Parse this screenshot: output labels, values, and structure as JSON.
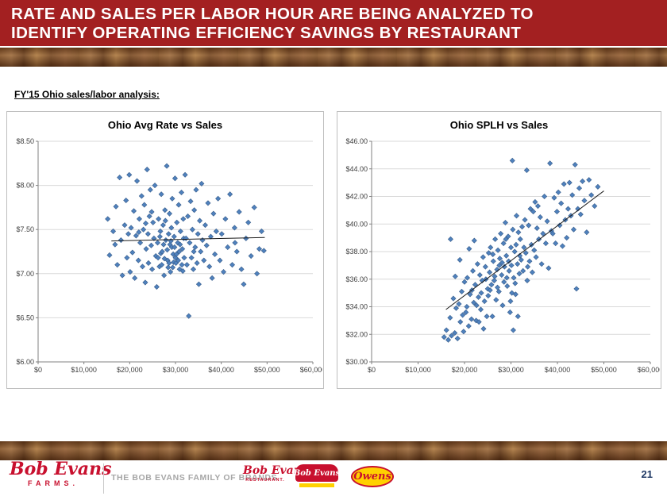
{
  "header": {
    "line1": "RATE AND SALES PER LABOR HOUR ARE BEING ANALYZED TO",
    "line2": "IDENTIFY OPERATING EFFICIENCY SAVINGS BY RESTAURANT"
  },
  "section_label": "FY'15 Ohio sales/labor analysis:",
  "colors": {
    "header_red": "#A32021",
    "brand_red": "#C8102E",
    "marker_blue": "#4F81BD",
    "marker_blue_stroke": "#385D8A",
    "gridline_gray": "#d9d9d9",
    "axis_gray": "#808080",
    "page_number_navy": "#1F3864"
  },
  "chart_data": [
    {
      "type": "scatter",
      "title": "Ohio Avg Rate vs Sales",
      "xlim": [
        0,
        60000
      ],
      "ylim": [
        6.0,
        8.5
      ],
      "x_ticks": [
        0,
        10000,
        20000,
        30000,
        40000,
        50000,
        60000
      ],
      "x_tick_labels": [
        "$0",
        "$10,000",
        "$20,000",
        "$30,000",
        "$40,000",
        "$50,000",
        "$60,000"
      ],
      "y_ticks": [
        6.0,
        6.5,
        7.0,
        7.5,
        8.0,
        8.5
      ],
      "y_tick_labels": [
        "$6.00",
        "$6.50",
        "$7.00",
        "$7.50",
        "$8.00",
        "$8.50"
      ],
      "marker_color": "#4F81BD",
      "marker_stroke": "#385D8A",
      "trendline": {
        "x1": 16000,
        "y1": 7.37,
        "x2": 49500,
        "y2": 7.41
      },
      "points": [
        [
          15200,
          7.62
        ],
        [
          15600,
          7.21
        ],
        [
          16400,
          7.48
        ],
        [
          16800,
          7.33
        ],
        [
          17000,
          7.76
        ],
        [
          17300,
          7.1
        ],
        [
          17800,
          8.09
        ],
        [
          18100,
          7.38
        ],
        [
          18400,
          6.98
        ],
        [
          18900,
          7.55
        ],
        [
          19200,
          7.83
        ],
        [
          19400,
          7.18
        ],
        [
          19700,
          7.45
        ],
        [
          19900,
          8.12
        ],
        [
          20100,
          7.02
        ],
        [
          20300,
          7.52
        ],
        [
          20600,
          7.24
        ],
        [
          20900,
          7.71
        ],
        [
          21100,
          6.95
        ],
        [
          21400,
          7.43
        ],
        [
          21600,
          8.05
        ],
        [
          21900,
          7.15
        ],
        [
          22000,
          7.47
        ],
        [
          22100,
          7.62
        ],
        [
          22300,
          7.35
        ],
        [
          22600,
          7.88
        ],
        [
          22800,
          7.08
        ],
        [
          23000,
          7.5
        ],
        [
          23200,
          7.78
        ],
        [
          23400,
          6.9
        ],
        [
          23500,
          7.57
        ],
        [
          23600,
          7.28
        ],
        [
          23800,
          8.18
        ],
        [
          24000,
          7.45
        ],
        [
          24100,
          7.12
        ],
        [
          24300,
          7.65
        ],
        [
          24500,
          7.95
        ],
        [
          24700,
          7.32
        ],
        [
          24800,
          7.7
        ],
        [
          24900,
          7.05
        ],
        [
          25100,
          7.58
        ],
        [
          25300,
          7.4
        ],
        [
          25500,
          8.0
        ],
        [
          25700,
          7.2
        ],
        [
          25900,
          6.85
        ],
        [
          26100,
          7.35
        ],
        [
          26200,
          7.18
        ],
        [
          26300,
          7.62
        ],
        [
          26500,
          7.08
        ],
        [
          26600,
          7.42
        ],
        [
          26700,
          7.48
        ],
        [
          26800,
          7.23
        ],
        [
          26900,
          7.9
        ],
        [
          27000,
          7.1
        ],
        [
          27100,
          7.25
        ],
        [
          27300,
          7.55
        ],
        [
          27400,
          7.33
        ],
        [
          27500,
          6.98
        ],
        [
          27600,
          7.17
        ],
        [
          27700,
          7.72
        ],
        [
          27800,
          7.6
        ],
        [
          27900,
          7.38
        ],
        [
          28100,
          8.22
        ],
        [
          28200,
          7.27
        ],
        [
          28300,
          7.15
        ],
        [
          28400,
          7.07
        ],
        [
          28500,
          7.45
        ],
        [
          28600,
          7.12
        ],
        [
          28700,
          7.68
        ],
        [
          28800,
          7.33
        ],
        [
          28900,
          7.02
        ],
        [
          29000,
          7.37
        ],
        [
          29100,
          7.52
        ],
        [
          29200,
          7.3
        ],
        [
          29300,
          7.85
        ],
        [
          29400,
          7.07
        ],
        [
          29500,
          7.22
        ],
        [
          29600,
          7.13
        ],
        [
          29700,
          7.42
        ],
        [
          29800,
          7.3
        ],
        [
          29900,
          8.08
        ],
        [
          30000,
          7.18
        ],
        [
          30100,
          7.12
        ],
        [
          30200,
          7.22
        ],
        [
          30300,
          7.58
        ],
        [
          30500,
          7.35
        ],
        [
          30600,
          7.15
        ],
        [
          30700,
          7.78
        ],
        [
          30800,
          7.25
        ],
        [
          30900,
          7.05
        ],
        [
          31000,
          7.33
        ],
        [
          31100,
          7.48
        ],
        [
          31300,
          7.92
        ],
        [
          31400,
          7.1
        ],
        [
          31500,
          7.28
        ],
        [
          31600,
          7.03
        ],
        [
          31700,
          7.62
        ],
        [
          31800,
          7.4
        ],
        [
          31900,
          7.18
        ],
        [
          32100,
          8.12
        ],
        [
          32300,
          7.4
        ],
        [
          32500,
          7.1
        ],
        [
          32700,
          7.65
        ],
        [
          32900,
          6.52
        ],
        [
          33100,
          7.35
        ],
        [
          33300,
          7.82
        ],
        [
          33500,
          7.18
        ],
        [
          33700,
          7.5
        ],
        [
          33900,
          7.05
        ],
        [
          34000,
          7.25
        ],
        [
          34100,
          7.72
        ],
        [
          34300,
          7.3
        ],
        [
          34500,
          7.95
        ],
        [
          34700,
          7.12
        ],
        [
          34900,
          7.45
        ],
        [
          35100,
          6.88
        ],
        [
          35300,
          7.6
        ],
        [
          35500,
          7.25
        ],
        [
          35700,
          8.02
        ],
        [
          35900,
          7.38
        ],
        [
          36200,
          7.15
        ],
        [
          36500,
          7.55
        ],
        [
          36800,
          7.32
        ],
        [
          37100,
          7.8
        ],
        [
          37400,
          7.08
        ],
        [
          37700,
          7.42
        ],
        [
          38000,
          6.95
        ],
        [
          38300,
          7.68
        ],
        [
          38600,
          7.22
        ],
        [
          38900,
          7.48
        ],
        [
          39300,
          7.85
        ],
        [
          39700,
          7.15
        ],
        [
          40100,
          7.45
        ],
        [
          40500,
          7.02
        ],
        [
          40900,
          7.62
        ],
        [
          41400,
          7.3
        ],
        [
          41900,
          7.9
        ],
        [
          42400,
          7.1
        ],
        [
          42900,
          7.52
        ],
        [
          43000,
          7.35
        ],
        [
          43400,
          7.25
        ],
        [
          43900,
          7.7
        ],
        [
          44400,
          7.05
        ],
        [
          44900,
          6.88
        ],
        [
          45400,
          7.4
        ],
        [
          45900,
          7.58
        ],
        [
          46500,
          7.2
        ],
        [
          47200,
          7.75
        ],
        [
          47800,
          7.0
        ],
        [
          48300,
          7.28
        ],
        [
          48800,
          7.48
        ],
        [
          49300,
          7.26
        ]
      ]
    },
    {
      "type": "scatter",
      "title": "Ohio SPLH vs Sales",
      "xlim": [
        0,
        60000
      ],
      "ylim": [
        30.0,
        46.0
      ],
      "x_ticks": [
        0,
        10000,
        20000,
        30000,
        40000,
        50000,
        60000
      ],
      "x_tick_labels": [
        "$0",
        "$10,000",
        "$20,000",
        "$30,000",
        "$40,000",
        "$50,000",
        "$60,000"
      ],
      "y_ticks": [
        30,
        32,
        34,
        36,
        38,
        40,
        42,
        44,
        46
      ],
      "y_tick_labels": [
        "$30.00",
        "$32.00",
        "$34.00",
        "$36.00",
        "$38.00",
        "$40.00",
        "$42.00",
        "$44.00",
        "$46.00"
      ],
      "marker_color": "#4F81BD",
      "marker_stroke": "#385D8A",
      "trendline": {
        "x1": 16000,
        "y1": 33.8,
        "x2": 50000,
        "y2": 42.4
      },
      "points": [
        [
          15600,
          31.8
        ],
        [
          16100,
          32.3
        ],
        [
          16500,
          31.6
        ],
        [
          16900,
          33.2
        ],
        [
          17000,
          38.9
        ],
        [
          17200,
          31.9
        ],
        [
          17600,
          34.6
        ],
        [
          17900,
          32.1
        ],
        [
          18000,
          36.2
        ],
        [
          18200,
          33.9
        ],
        [
          18500,
          31.7
        ],
        [
          18800,
          34.2
        ],
        [
          19000,
          37.4
        ],
        [
          19100,
          32.9
        ],
        [
          19400,
          35.1
        ],
        [
          19600,
          33.4
        ],
        [
          19800,
          32.2
        ],
        [
          20000,
          35.8
        ],
        [
          20300,
          33.6
        ],
        [
          20500,
          34.0
        ],
        [
          20600,
          36.1
        ],
        [
          20900,
          32.6
        ],
        [
          21000,
          38.2
        ],
        [
          21200,
          34.9
        ],
        [
          21500,
          33.1
        ],
        [
          21600,
          35.2
        ],
        [
          21800,
          36.6
        ],
        [
          22000,
          34.3
        ],
        [
          22100,
          38.8
        ],
        [
          22300,
          35.6
        ],
        [
          22500,
          33.0
        ],
        [
          22600,
          34.1
        ],
        [
          22800,
          37.1
        ],
        [
          23000,
          34.7
        ],
        [
          23100,
          32.9
        ],
        [
          23300,
          36.3
        ],
        [
          23500,
          33.8
        ],
        [
          23600,
          35.0
        ],
        [
          23800,
          35.9
        ],
        [
          24000,
          37.6
        ],
        [
          24100,
          32.4
        ],
        [
          24300,
          34.4
        ],
        [
          24500,
          36.9
        ],
        [
          24600,
          36.0
        ],
        [
          24800,
          33.3
        ],
        [
          25000,
          35.3
        ],
        [
          25100,
          34.8
        ],
        [
          25200,
          37.9
        ],
        [
          25400,
          36.5
        ],
        [
          25500,
          35.2
        ],
        [
          25600,
          38.3
        ],
        [
          25800,
          35.6
        ],
        [
          26000,
          33.3
        ],
        [
          26100,
          37.8
        ],
        [
          26200,
          37.3
        ],
        [
          26400,
          35.9
        ],
        [
          26500,
          36.2
        ],
        [
          26600,
          38.9
        ],
        [
          26800,
          34.5
        ],
        [
          27000,
          36.7
        ],
        [
          27100,
          35.4
        ],
        [
          27200,
          38.1
        ],
        [
          27400,
          35.1
        ],
        [
          27500,
          37.0
        ],
        [
          27600,
          37.5
        ],
        [
          27800,
          39.3
        ],
        [
          28000,
          36.3
        ],
        [
          28100,
          37.2
        ],
        [
          28200,
          34.1
        ],
        [
          28400,
          38.6
        ],
        [
          28500,
          35.8
        ],
        [
          28600,
          36.9
        ],
        [
          28800,
          40.1
        ],
        [
          28900,
          38.9
        ],
        [
          29000,
          37.7
        ],
        [
          29100,
          36.1
        ],
        [
          29200,
          35.5
        ],
        [
          29400,
          39.1
        ],
        [
          29500,
          37.3
        ],
        [
          29600,
          36.6
        ],
        [
          29800,
          33.6
        ],
        [
          29900,
          34.4
        ],
        [
          30000,
          38.3
        ],
        [
          30100,
          37.0
        ],
        [
          30200,
          35.0
        ],
        [
          30300,
          44.6
        ],
        [
          30400,
          39.6
        ],
        [
          30500,
          32.3
        ],
        [
          30600,
          36.1
        ],
        [
          30800,
          38.0
        ],
        [
          30900,
          35.7
        ],
        [
          31000,
          34.9
        ],
        [
          31100,
          38.5
        ],
        [
          31200,
          40.6
        ],
        [
          31400,
          37.1
        ],
        [
          31500,
          33.3
        ],
        [
          31600,
          39.4
        ],
        [
          31800,
          36.4
        ],
        [
          31900,
          37.7
        ],
        [
          32000,
          38.9
        ],
        [
          32200,
          37.4
        ],
        [
          32400,
          39.8
        ],
        [
          32600,
          36.6
        ],
        [
          32800,
          38.3
        ],
        [
          33000,
          40.3
        ],
        [
          33200,
          37.9
        ],
        [
          33400,
          43.9
        ],
        [
          33500,
          35.9
        ],
        [
          33600,
          36.9
        ],
        [
          33800,
          39.9
        ],
        [
          34000,
          37.3
        ],
        [
          34200,
          41.1
        ],
        [
          34400,
          38.5
        ],
        [
          34600,
          36.5
        ],
        [
          34800,
          40.9
        ],
        [
          35000,
          38.1
        ],
        [
          35200,
          41.6
        ],
        [
          35400,
          37.6
        ],
        [
          35600,
          39.7
        ],
        [
          35800,
          41.3
        ],
        [
          36000,
          38.9
        ],
        [
          36300,
          40.5
        ],
        [
          36600,
          37.1
        ],
        [
          36900,
          39.3
        ],
        [
          37200,
          42.0
        ],
        [
          37500,
          38.6
        ],
        [
          37800,
          40.2
        ],
        [
          38100,
          36.8
        ],
        [
          38400,
          44.4
        ],
        [
          38700,
          39.5
        ],
        [
          39000,
          39.3
        ],
        [
          39300,
          41.9
        ],
        [
          39600,
          38.6
        ],
        [
          39900,
          40.9
        ],
        [
          40200,
          42.3
        ],
        [
          40500,
          39.9
        ],
        [
          40800,
          41.5
        ],
        [
          41100,
          38.4
        ],
        [
          41400,
          42.9
        ],
        [
          41700,
          40.3
        ],
        [
          42000,
          39.0
        ],
        [
          42300,
          41.1
        ],
        [
          42600,
          43.0
        ],
        [
          42900,
          40.6
        ],
        [
          43200,
          42.1
        ],
        [
          43500,
          39.6
        ],
        [
          43800,
          44.3
        ],
        [
          44100,
          35.3
        ],
        [
          44400,
          41.1
        ],
        [
          44700,
          42.6
        ],
        [
          45000,
          40.7
        ],
        [
          45400,
          43.1
        ],
        [
          45800,
          41.7
        ],
        [
          46300,
          39.4
        ],
        [
          46800,
          43.2
        ],
        [
          47300,
          42.1
        ],
        [
          48000,
          41.3
        ],
        [
          48700,
          42.7
        ]
      ]
    }
  ],
  "footer": {
    "farms_logo": {
      "script": "Bob Evans",
      "sub": "FARMS."
    },
    "family_text": "THE BOB EVANS FAMILY OF BRANDS",
    "restaurant_logo": {
      "script": "Bob Evans",
      "sub": "RESTAURANT."
    },
    "grocery_logo": {
      "script": "Bob Evans"
    },
    "owens_logo": {
      "script": "Owens"
    },
    "page_number": "21"
  }
}
